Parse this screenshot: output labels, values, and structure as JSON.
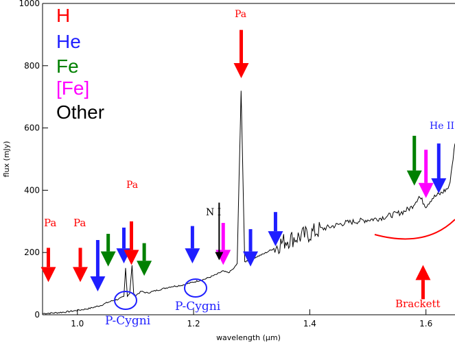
{
  "chart_data": {
    "type": "line",
    "xlabel": "wavelength (μm)",
    "ylabel": "flux (mJy)",
    "xlim": [
      0.94,
      1.65
    ],
    "ylim": [
      0,
      1000
    ],
    "x_ticks": [
      1.0,
      1.2,
      1.4,
      1.6
    ],
    "x_tick_labels": [
      "1.0",
      "1.2",
      "1.4",
      "1.6"
    ],
    "y_ticks": [
      0,
      200,
      400,
      600,
      800,
      1000
    ],
    "y_tick_labels": [
      "0",
      "200",
      "400",
      "600",
      "800",
      "1000"
    ],
    "grid": false,
    "legend": [
      {
        "label": "H",
        "color": "#ff0000"
      },
      {
        "label": "He",
        "color": "#1f1fff"
      },
      {
        "label": "Fe",
        "color": "#008000"
      },
      {
        "label": "[Fe]",
        "color": "#ff00ff"
      },
      {
        "label": "Other",
        "color": "#000000"
      }
    ],
    "legend_position": "top-left",
    "series": [
      {
        "color": "#000000",
        "x": [
          0.94,
          0.96,
          0.98,
          1.0,
          1.02,
          1.04,
          1.05,
          1.06,
          1.07,
          1.075,
          1.08,
          1.083,
          1.086,
          1.09,
          1.094,
          1.097,
          1.1,
          1.11,
          1.12,
          1.14,
          1.16,
          1.18,
          1.2,
          1.22,
          1.24,
          1.25,
          1.26,
          1.27,
          1.275,
          1.2818,
          1.288,
          1.3,
          1.32,
          1.34,
          1.35,
          1.36,
          1.38,
          1.4,
          1.42,
          1.44,
          1.46,
          1.48,
          1.5,
          1.52,
          1.54,
          1.56,
          1.575,
          1.588,
          1.6,
          1.611,
          1.626,
          1.64,
          1.65
        ],
        "y": [
          4,
          6,
          9,
          14,
          20,
          30,
          38,
          45,
          50,
          54,
          58,
          150,
          60,
          70,
          158,
          65,
          62,
          75,
          70,
          80,
          90,
          95,
          105,
          115,
          130,
          140,
          135,
          150,
          165,
          720,
          170,
          180,
          195,
          215,
          230,
          240,
          250,
          260,
          275,
          285,
          295,
          300,
          305,
          310,
          320,
          330,
          345,
          380,
          350,
          375,
          390,
          410,
          550
        ]
      }
    ],
    "annotations": [
      {
        "text": "Pa",
        "color": "#ff0000"
      },
      {
        "text": "Pa",
        "color": "#ff0000"
      },
      {
        "text": "Pa",
        "color": "#ff0000"
      },
      {
        "text": "Pa",
        "color": "#ff0000"
      },
      {
        "text": "N I",
        "color": "#000000"
      },
      {
        "text": "He II",
        "color": "#1f1fff"
      },
      {
        "text": "P-Cygni",
        "color": "#1f1fff"
      },
      {
        "text": "P-Cygni",
        "color": "#1f1fff"
      },
      {
        "text": "Brackett",
        "color": "#ff0000"
      }
    ]
  },
  "colors": {
    "H": "#ff0000",
    "He": "#1f1fff",
    "Fe": "#008000",
    "FeForbidden": "#ff00ff",
    "Other": "#000000"
  },
  "arrows": [
    {
      "x": 0.95,
      "tail": 215,
      "head": 105,
      "color": "H"
    },
    {
      "x": 1.005,
      "tail": 215,
      "head": 105,
      "color": "H"
    },
    {
      "x": 1.035,
      "tail": 240,
      "head": 75,
      "color": "He"
    },
    {
      "x": 1.053,
      "tail": 260,
      "head": 155,
      "color": "Fe"
    },
    {
      "x": 1.08,
      "tail": 280,
      "head": 165,
      "color": "He"
    },
    {
      "x": 1.093,
      "tail": 300,
      "head": 160,
      "color": "H"
    },
    {
      "x": 1.115,
      "tail": 230,
      "head": 125,
      "color": "Fe"
    },
    {
      "x": 1.198,
      "tail": 285,
      "head": 165,
      "color": "He"
    },
    {
      "x": 1.251,
      "tail": 295,
      "head": 160,
      "color": "FeForbidden"
    },
    {
      "x": 1.298,
      "tail": 275,
      "head": 155,
      "color": "He"
    },
    {
      "x": 1.341,
      "tail": 330,
      "head": 220,
      "color": "He"
    },
    {
      "x": 1.282,
      "tail": 915,
      "head": 760,
      "color": "H"
    },
    {
      "x": 1.58,
      "tail": 575,
      "head": 415,
      "color": "Fe"
    },
    {
      "x": 1.6,
      "tail": 530,
      "head": 375,
      "color": "FeForbidden"
    },
    {
      "x": 1.622,
      "tail": 550,
      "head": 390,
      "color": "He"
    },
    {
      "x": 1.595,
      "tail": 50,
      "head": 160,
      "color": "H"
    }
  ],
  "ni_arrow": {
    "x": 1.244,
    "tail": 360,
    "head": 175,
    "color": "Other"
  }
}
